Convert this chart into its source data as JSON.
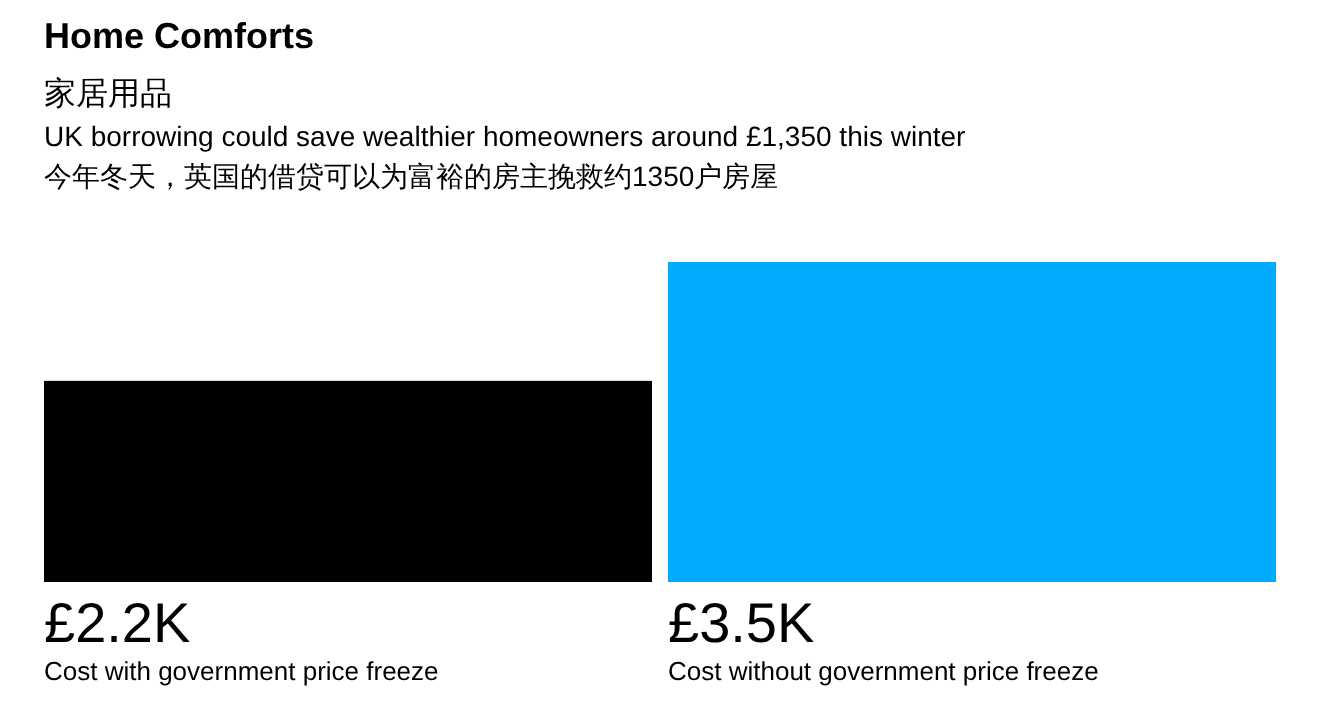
{
  "chart_data": {
    "type": "bar",
    "title": "Home Comforts",
    "subtitle": "家居用品",
    "annotations": [
      "UK borrowing could save wealthier homeowners around £1,350 this winter",
      "今年冬天，英国的借贷可以为富裕的房主挽救约1350户房屋"
    ],
    "categories": [
      "Cost with government price freeze",
      "Cost without government price freeze"
    ],
    "values": [
      2.2,
      3.5
    ],
    "value_labels": [
      "£2.2K",
      "£3.5K"
    ],
    "colors": [
      "#000000",
      "#00aaff"
    ]
  }
}
